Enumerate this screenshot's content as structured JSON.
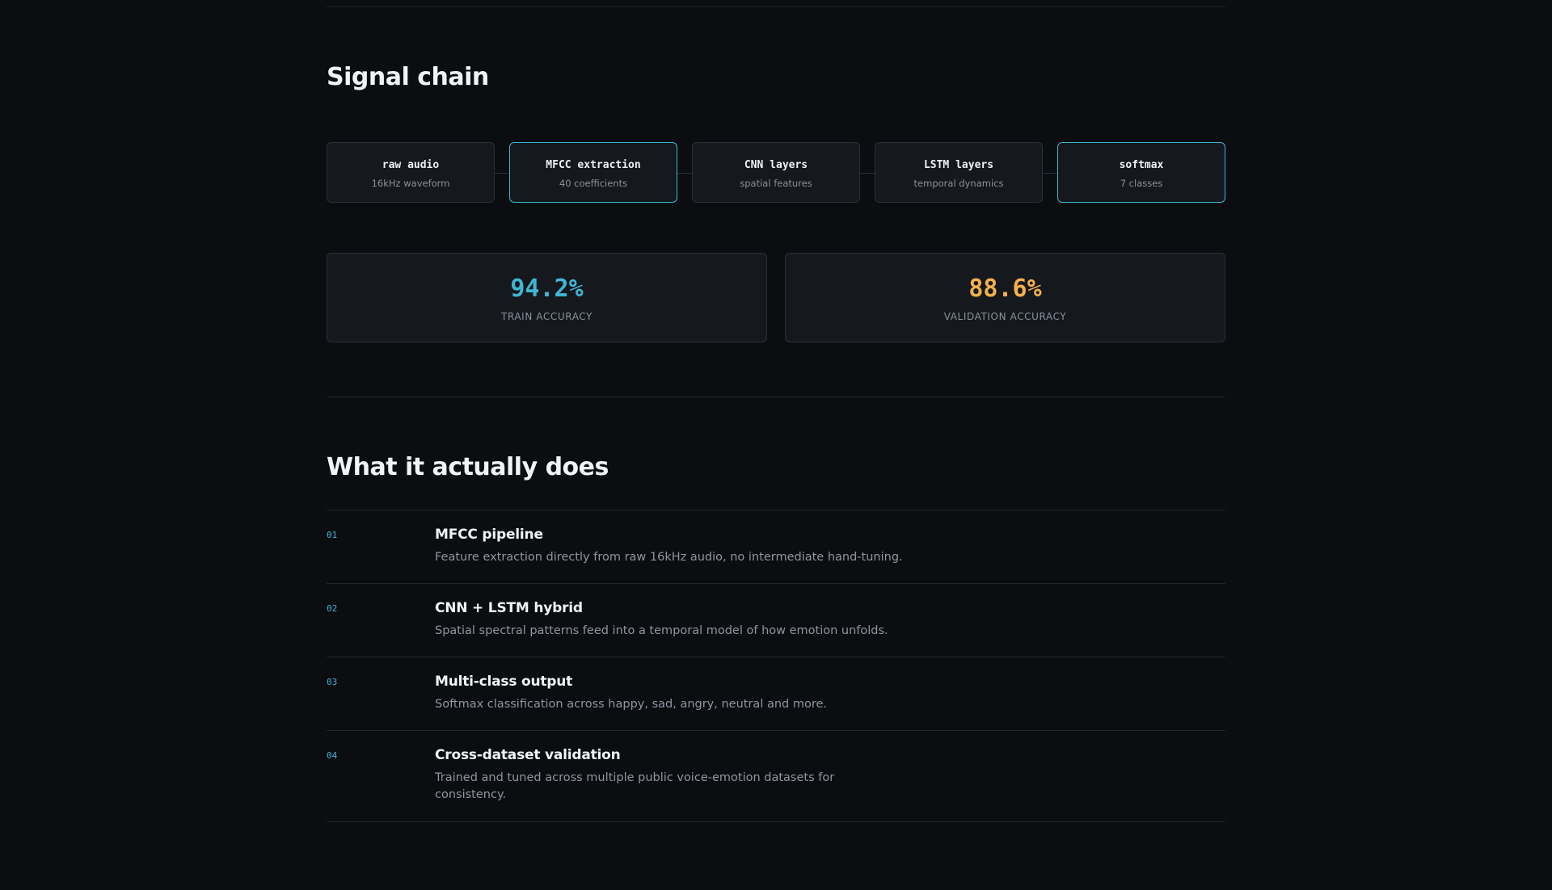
{
  "signal_chain": {
    "title": "Signal chain",
    "stages": [
      {
        "name": "raw audio",
        "sub": "16kHz waveform",
        "active": false
      },
      {
        "name": "MFCC extraction",
        "sub": "40 coefficients",
        "active": true
      },
      {
        "name": "CNN layers",
        "sub": "spatial features",
        "active": false
      },
      {
        "name": "LSTM layers",
        "sub": "temporal dynamics",
        "active": false
      },
      {
        "name": "softmax",
        "sub": "7 classes",
        "active": true
      }
    ]
  },
  "metrics": [
    {
      "value": "94.2%",
      "label": "TRAIN ACCURACY",
      "color": "#3fb6d3"
    },
    {
      "value": "88.6%",
      "label": "VALIDATION ACCURACY",
      "color": "#f4b04d"
    }
  ],
  "what_it_does": {
    "title": "What it actually does",
    "items": [
      {
        "num": "01",
        "title": "MFCC pipeline",
        "desc": "Feature extraction directly from raw 16kHz audio, no intermediate hand-tuning."
      },
      {
        "num": "02",
        "title": "CNN + LSTM hybrid",
        "desc": "Spatial spectral patterns feed into a temporal model of how emotion unfolds."
      },
      {
        "num": "03",
        "title": "Multi-class output",
        "desc": "Softmax classification across happy, sad, angry, neutral and more."
      },
      {
        "num": "04",
        "title": "Cross-dataset validation",
        "desc": "Trained and tuned across multiple public voice-emotion datasets for consistency."
      }
    ]
  },
  "theme": {
    "accent": "#3fb6d3",
    "warning": "#f4b04d",
    "background": "#0b0d11"
  }
}
